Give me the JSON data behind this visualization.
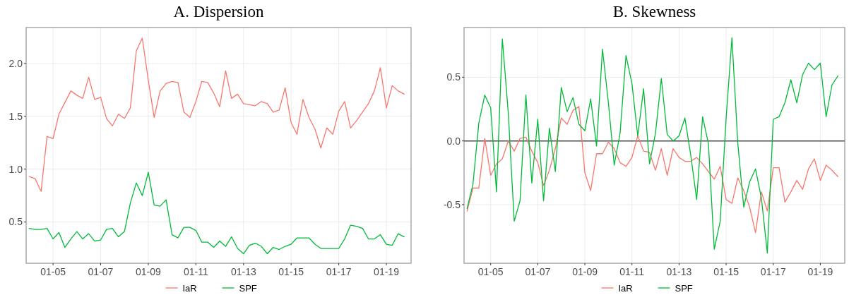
{
  "chart_data": [
    {
      "type": "line",
      "title": "A. Dispersion",
      "x": [
        "2004-01",
        "2004-04",
        "2004-07",
        "2004-10",
        "2005-01",
        "2005-04",
        "2005-07",
        "2005-10",
        "2006-01",
        "2006-04",
        "2006-07",
        "2006-10",
        "2007-01",
        "2007-04",
        "2007-07",
        "2007-10",
        "2008-01",
        "2008-04",
        "2008-07",
        "2008-10",
        "2009-01",
        "2009-04",
        "2009-07",
        "2009-10",
        "2010-01",
        "2010-04",
        "2010-07",
        "2010-10",
        "2011-01",
        "2011-04",
        "2011-07",
        "2011-10",
        "2012-01",
        "2012-04",
        "2012-07",
        "2012-10",
        "2013-01",
        "2013-04",
        "2013-07",
        "2013-10",
        "2014-01",
        "2014-04",
        "2014-07",
        "2014-10",
        "2015-01",
        "2015-04",
        "2015-07",
        "2015-10",
        "2016-01",
        "2016-04",
        "2016-07",
        "2016-10",
        "2017-01",
        "2017-04",
        "2017-07",
        "2017-10",
        "2018-01",
        "2018-04",
        "2018-07",
        "2018-10",
        "2019-01",
        "2019-04",
        "2019-07",
        "2019-10"
      ],
      "series": [
        {
          "name": "IaR",
          "color": "#f8766d",
          "values": [
            0.93,
            0.91,
            0.79,
            1.31,
            1.29,
            1.52,
            1.63,
            1.74,
            1.7,
            1.67,
            1.87,
            1.66,
            1.68,
            1.48,
            1.41,
            1.52,
            1.48,
            1.58,
            2.12,
            2.24,
            1.84,
            1.49,
            1.74,
            1.81,
            1.83,
            1.82,
            1.54,
            1.49,
            1.64,
            1.83,
            1.82,
            1.72,
            1.59,
            1.93,
            1.67,
            1.71,
            1.62,
            1.61,
            1.6,
            1.64,
            1.62,
            1.54,
            1.56,
            1.77,
            1.44,
            1.33,
            1.66,
            1.49,
            1.38,
            1.2,
            1.39,
            1.33,
            1.55,
            1.64,
            1.39,
            1.46,
            1.54,
            1.62,
            1.74,
            1.96,
            1.58,
            1.79,
            1.74,
            1.71
          ]
        },
        {
          "name": "SPF",
          "color": "#00ba38",
          "values": [
            0.44,
            0.43,
            0.43,
            0.44,
            0.34,
            0.4,
            0.26,
            0.34,
            0.41,
            0.34,
            0.39,
            0.32,
            0.33,
            0.43,
            0.44,
            0.36,
            0.41,
            0.68,
            0.87,
            0.75,
            0.97,
            0.66,
            0.65,
            0.71,
            0.38,
            0.35,
            0.45,
            0.45,
            0.42,
            0.31,
            0.31,
            0.26,
            0.32,
            0.27,
            0.36,
            0.25,
            0.2,
            0.28,
            0.3,
            0.27,
            0.2,
            0.26,
            0.24,
            0.27,
            0.29,
            0.35,
            0.35,
            0.35,
            0.29,
            0.25,
            0.25,
            0.25,
            0.25,
            0.34,
            0.47,
            0.46,
            0.44,
            0.34,
            0.34,
            0.38,
            0.29,
            0.28,
            0.39,
            0.36
          ]
        }
      ],
      "xlim": [
        "2003-11-15",
        "2020-01-15"
      ],
      "xticks": [
        {
          "value": "2005-01",
          "label": "01-05"
        },
        {
          "value": "2007-01",
          "label": "01-07"
        },
        {
          "value": "2009-01",
          "label": "01-09"
        },
        {
          "value": "2011-01",
          "label": "01-11"
        },
        {
          "value": "2013-01",
          "label": "01-13"
        },
        {
          "value": "2015-01",
          "label": "01-15"
        },
        {
          "value": "2017-01",
          "label": "01-17"
        },
        {
          "value": "2019-01",
          "label": "01-19"
        }
      ],
      "ylim": [
        0.11,
        2.34
      ],
      "yticks": [
        {
          "value": 0.5,
          "label": "0.5"
        },
        {
          "value": 1,
          "label": "1.0"
        },
        {
          "value": 1.5,
          "label": "1.5"
        },
        {
          "value": 2,
          "label": "2.0"
        }
      ],
      "grid": true,
      "legend": "bottom",
      "line_style": "solid"
    },
    {
      "type": "line",
      "title": "B. Skewness",
      "x": [
        "2004-01",
        "2004-04",
        "2004-07",
        "2004-10",
        "2005-01",
        "2005-04",
        "2005-07",
        "2005-10",
        "2006-01",
        "2006-04",
        "2006-07",
        "2006-10",
        "2007-01",
        "2007-04",
        "2007-07",
        "2007-10",
        "2008-01",
        "2008-04",
        "2008-07",
        "2008-10",
        "2009-01",
        "2009-04",
        "2009-07",
        "2009-10",
        "2010-01",
        "2010-04",
        "2010-07",
        "2010-10",
        "2011-01",
        "2011-04",
        "2011-07",
        "2011-10",
        "2012-01",
        "2012-04",
        "2012-07",
        "2012-10",
        "2013-01",
        "2013-04",
        "2013-07",
        "2013-10",
        "2014-01",
        "2014-04",
        "2014-07",
        "2014-10",
        "2015-01",
        "2015-04",
        "2015-07",
        "2015-10",
        "2016-01",
        "2016-04",
        "2016-07",
        "2016-10",
        "2017-01",
        "2017-04",
        "2017-07",
        "2017-10",
        "2018-01",
        "2018-04",
        "2018-07",
        "2018-10",
        "2019-01",
        "2019-04",
        "2019-07",
        "2019-10"
      ],
      "series": [
        {
          "name": "IaR",
          "color": "#f8766d",
          "values": [
            -0.55,
            -0.37,
            -0.37,
            0.02,
            -0.27,
            -0.18,
            -0.14,
            0.0,
            -0.08,
            0.02,
            0.03,
            -0.08,
            -0.17,
            -0.35,
            -0.23,
            -0.06,
            0.18,
            0.13,
            0.24,
            0.27,
            -0.25,
            -0.39,
            -0.1,
            -0.1,
            -0.01,
            -0.06,
            -0.17,
            -0.2,
            -0.13,
            0.04,
            -0.08,
            -0.09,
            -0.23,
            -0.06,
            -0.27,
            -0.06,
            -0.13,
            -0.16,
            -0.16,
            -0.13,
            -0.18,
            -0.24,
            -0.3,
            -0.2,
            -0.46,
            -0.49,
            -0.29,
            -0.39,
            -0.52,
            -0.72,
            -0.4,
            -0.55,
            -0.21,
            -0.21,
            -0.48,
            -0.4,
            -0.31,
            -0.38,
            -0.22,
            -0.14,
            -0.31,
            -0.19,
            -0.23,
            -0.28
          ]
        },
        {
          "name": "SPF",
          "color": "#00ba38",
          "values": [
            -0.53,
            -0.34,
            0.14,
            0.36,
            0.26,
            -0.4,
            0.8,
            0.22,
            -0.63,
            -0.47,
            0.36,
            -0.33,
            0.17,
            -0.47,
            0.1,
            -0.24,
            0.42,
            0.23,
            0.34,
            0.13,
            0.08,
            0.33,
            -0.04,
            0.72,
            0.3,
            -0.19,
            0.06,
            0.67,
            0.45,
            0.04,
            0.41,
            -0.18,
            0.06,
            0.49,
            0.05,
            0.0,
            0.04,
            0.18,
            -0.11,
            -0.46,
            0.19,
            -0.02,
            -0.85,
            -0.63,
            0.18,
            0.81,
            -0.02,
            -0.52,
            -0.32,
            -0.22,
            -0.45,
            -0.88,
            0.17,
            0.19,
            0.3,
            0.48,
            0.3,
            0.52,
            0.61,
            0.56,
            0.61,
            0.19,
            0.44,
            0.51
          ]
        }
      ],
      "xlim": [
        "2003-11-15",
        "2020-01-15"
      ],
      "xticks": [
        {
          "value": "2005-01",
          "label": "01-05"
        },
        {
          "value": "2007-01",
          "label": "01-07"
        },
        {
          "value": "2009-01",
          "label": "01-09"
        },
        {
          "value": "2011-01",
          "label": "01-11"
        },
        {
          "value": "2013-01",
          "label": "01-13"
        },
        {
          "value": "2015-01",
          "label": "01-15"
        },
        {
          "value": "2017-01",
          "label": "01-17"
        },
        {
          "value": "2019-01",
          "label": "01-19"
        }
      ],
      "ylim": [
        -0.96,
        0.89
      ],
      "yticks": [
        {
          "value": -0.5,
          "label": "-0.5"
        },
        {
          "value": 0,
          "label": "0.0"
        },
        {
          "value": 0.5,
          "label": "0.5"
        }
      ],
      "grid": true,
      "legend": "bottom",
      "line_style": "solid",
      "ref_lines": [
        {
          "axis": "y",
          "value": 0,
          "color": "#4d4d4d"
        }
      ]
    }
  ]
}
